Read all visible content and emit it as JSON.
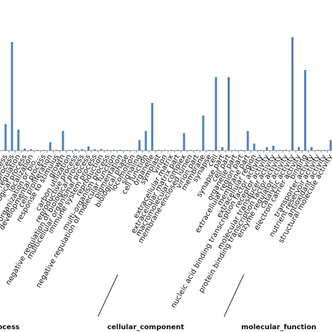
{
  "chart_data": {
    "type": "bar",
    "categories": [
      "cellular process",
      "metabolic process",
      "biological regulation",
      "regulation of biological process",
      "localization",
      "cellular component organization or bio...",
      "developmental process",
      "cell proliferation",
      "response to stimulus",
      "growth",
      "carbon utilization",
      "reproductive process",
      "negative regulation of biological process",
      "multicellular organismal process",
      "immune system process",
      "reproduction",
      "multi-organism process",
      "negative regulation of molecular function",
      "pigmentation",
      "biological phase",
      "locomotion",
      "signaling",
      "cell junction",
      "organelle",
      "symplast",
      "virion",
      "extracellular matrix",
      "extracellular matrix part",
      "macromolecular complex",
      "membrane-enclosed lumen",
      "virion part",
      "membrane",
      "synapse",
      "cell",
      "synapse part",
      "cell part",
      "organelle part",
      "extracellular region part",
      "membrane part",
      "extracellular region",
      "nucleic acid binding transcription factor activity",
      "receptor activity",
      "molecular transducer activity",
      "protein binding transcription factor activity",
      "enzyme regulator activity",
      "catalytic activity",
      "electron carrier activity",
      "binding",
      "transporter activity",
      "nutrient reservoir activity",
      "antioxidant activity",
      "structural molecule activity"
    ],
    "values": [
      38,
      155,
      30,
      3,
      2,
      1,
      1,
      12,
      1,
      28,
      1,
      2,
      2,
      6,
      2,
      2,
      1,
      1,
      1,
      1,
      0.5,
      15,
      28,
      68,
      1,
      1,
      1,
      1,
      25,
      1,
      1,
      50,
      1,
      105,
      5,
      105,
      1,
      1,
      28,
      10,
      1,
      5,
      7,
      1,
      1,
      162,
      5,
      115,
      5,
      1,
      1,
      15
    ],
    "color": "#4f81bd",
    "ylim": [
      0,
      200
    ],
    "groups": [
      "biological_process",
      "cellular_component",
      "molecular_function"
    ]
  }
}
